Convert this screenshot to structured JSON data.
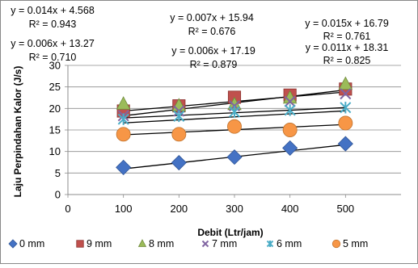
{
  "chart_data": {
    "type": "scatter",
    "xlabel": "Debit (Ltr/jam)",
    "ylabel": "Laju Perpindahan Kalor (J/s)",
    "xlim": [
      0,
      600
    ],
    "ylim": [
      0,
      30
    ],
    "x_ticks": [
      "0",
      "100",
      "200",
      "300",
      "400",
      "500"
    ],
    "y_ticks": [
      "0",
      "5",
      "10",
      "15",
      "20",
      "25",
      "30"
    ],
    "grid": "horizontal",
    "legend_position": "bottom",
    "x": [
      100,
      200,
      300,
      400,
      500
    ],
    "series": [
      {
        "name": "0 mm",
        "marker": "diamond",
        "color": "#4472C4",
        "values": [
          6.3,
          7.4,
          8.7,
          10.8,
          11.8
        ]
      },
      {
        "name": "9 mm",
        "marker": "square",
        "color": "#C0504D",
        "values": [
          19.4,
          20.6,
          22.6,
          23.1,
          24.5
        ]
      },
      {
        "name": "8 mm",
        "marker": "triangle",
        "color": "#9BBB59",
        "values": [
          21.0,
          20.6,
          20.9,
          22.4,
          25.6
        ]
      },
      {
        "name": "7 mm",
        "marker": "x",
        "color": "#8064A2",
        "values": [
          18.3,
          19.4,
          20.6,
          21.6,
          23.4
        ]
      },
      {
        "name": "6 mm",
        "marker": "star",
        "color": "#4BACC6",
        "values": [
          17.5,
          18.2,
          19.2,
          19.6,
          20.2
        ]
      },
      {
        "name": "5 mm",
        "marker": "circle",
        "color": "#F79646",
        "values": [
          14.0,
          14.0,
          15.8,
          15.0,
          16.6
        ]
      }
    ],
    "trendlines": [
      {
        "equation": "y = 0.014x + 4.568",
        "r2": "R² = 0.943",
        "slope": 0.014,
        "intercept": 4.568
      },
      {
        "equation": "y = 0.007x + 15.94",
        "r2": "R² = 0.676",
        "slope": 0.007,
        "intercept": 15.94
      },
      {
        "equation": "y = 0.015x + 16.79",
        "r2": "R² = 0.761",
        "slope": 0.015,
        "intercept": 16.79
      },
      {
        "equation": "y = 0.006x + 13.27",
        "r2": "R² = 0.710",
        "slope": 0.006,
        "intercept": 13.27
      },
      {
        "equation": "y = 0.006x + 17.19",
        "r2": "R² = 0.879",
        "slope": 0.006,
        "intercept": 17.19
      },
      {
        "equation": "y = 0.011x + 18.31",
        "r2": "R² = 0.825",
        "slope": 0.011,
        "intercept": 18.31
      }
    ]
  }
}
